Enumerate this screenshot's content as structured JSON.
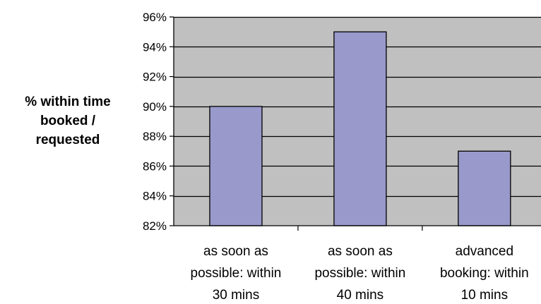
{
  "colors": {
    "plot_background": "#c0c0c0",
    "bar_fill": "#9999cc",
    "bar_stroke": "#000000",
    "gridline": "#000000"
  },
  "chart_data": {
    "type": "bar",
    "title": "",
    "xlabel": "",
    "ylabel": "% within time booked / requested",
    "ylabel_lines": [
      "% within time",
      "booked /",
      "requested"
    ],
    "categories": [
      "as soon as possible: within 30 mins",
      "as soon as possible: within 40 mins",
      "advanced booking: within 10 mins"
    ],
    "category_lines": [
      [
        "as soon as",
        "possible: within",
        "30 mins"
      ],
      [
        "as soon as",
        "possible: within",
        "40 mins"
      ],
      [
        "advanced",
        "booking: within",
        "10 mins"
      ]
    ],
    "values": [
      0.9,
      0.95,
      0.87
    ],
    "ylim": [
      0.82,
      0.96
    ],
    "yticks": [
      0.82,
      0.84,
      0.86,
      0.88,
      0.9,
      0.92,
      0.94,
      0.96
    ],
    "ytick_labels": [
      "82%",
      "84%",
      "86%",
      "88%",
      "90%",
      "92%",
      "94%",
      "96%"
    ],
    "grid": true,
    "legend": "none"
  }
}
